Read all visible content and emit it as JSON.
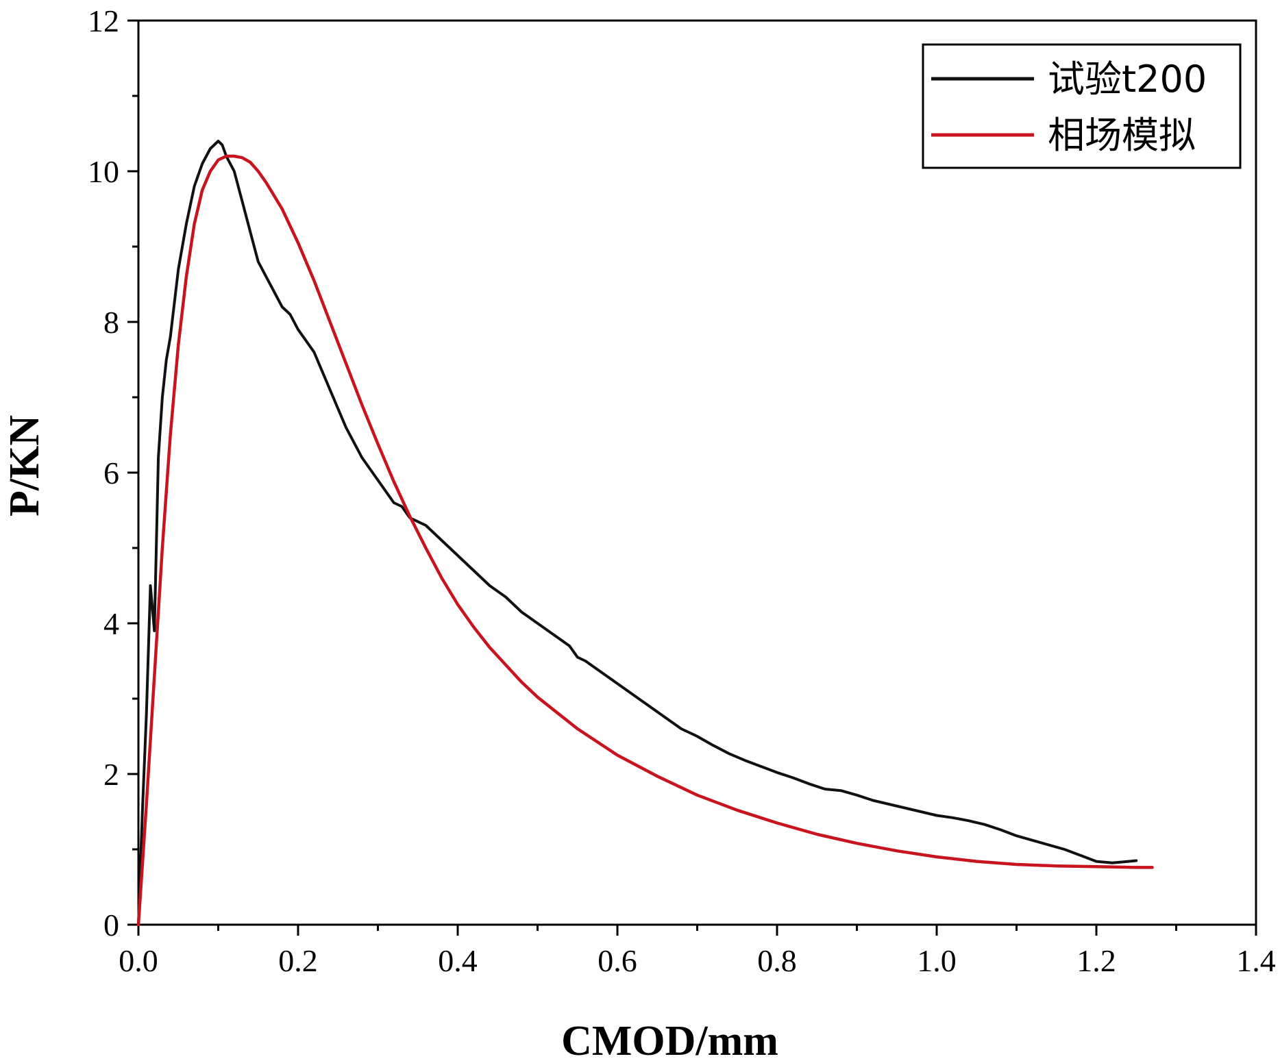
{
  "chart_data": {
    "type": "line",
    "title": "",
    "xlabel": "CMOD/mm",
    "ylabel": "P/KN",
    "xlim": [
      0.0,
      1.4
    ],
    "ylim": [
      0,
      12
    ],
    "x_ticks": [
      0.0,
      0.2,
      0.4,
      0.6,
      0.8,
      1.0,
      1.2,
      1.4
    ],
    "x_tick_labels": [
      "0.0",
      "0.2",
      "0.4",
      "0.6",
      "0.8",
      "1.0",
      "1.2",
      "1.4"
    ],
    "y_ticks": [
      0,
      2,
      4,
      6,
      8,
      10,
      12
    ],
    "y_tick_labels": [
      "0",
      "2",
      "4",
      "6",
      "8",
      "10",
      "12"
    ],
    "legend_position": "top-right",
    "series": [
      {
        "name": "试验t200",
        "color": "#111111",
        "x": [
          0.0,
          0.005,
          0.01,
          0.015,
          0.02,
          0.025,
          0.03,
          0.035,
          0.04,
          0.05,
          0.06,
          0.07,
          0.08,
          0.09,
          0.1,
          0.105,
          0.11,
          0.12,
          0.13,
          0.14,
          0.15,
          0.16,
          0.17,
          0.18,
          0.19,
          0.2,
          0.22,
          0.24,
          0.26,
          0.28,
          0.3,
          0.32,
          0.33,
          0.34,
          0.36,
          0.38,
          0.4,
          0.42,
          0.44,
          0.46,
          0.48,
          0.5,
          0.52,
          0.54,
          0.55,
          0.56,
          0.58,
          0.6,
          0.62,
          0.64,
          0.66,
          0.68,
          0.7,
          0.72,
          0.74,
          0.76,
          0.78,
          0.8,
          0.82,
          0.84,
          0.86,
          0.88,
          0.9,
          0.92,
          0.94,
          0.96,
          0.98,
          1.0,
          1.02,
          1.04,
          1.06,
          1.08,
          1.1,
          1.12,
          1.14,
          1.16,
          1.18,
          1.2,
          1.22,
          1.24,
          1.25
        ],
        "y": [
          0.0,
          1.5,
          2.8,
          4.5,
          3.9,
          6.2,
          7.0,
          7.5,
          7.8,
          8.7,
          9.3,
          9.8,
          10.1,
          10.3,
          10.4,
          10.35,
          10.2,
          10.0,
          9.6,
          9.2,
          8.8,
          8.6,
          8.4,
          8.2,
          8.1,
          7.9,
          7.6,
          7.1,
          6.6,
          6.2,
          5.9,
          5.6,
          5.55,
          5.4,
          5.3,
          5.1,
          4.9,
          4.7,
          4.5,
          4.35,
          4.15,
          4.0,
          3.85,
          3.7,
          3.55,
          3.5,
          3.35,
          3.2,
          3.05,
          2.9,
          2.75,
          2.6,
          2.5,
          2.38,
          2.27,
          2.18,
          2.1,
          2.02,
          1.95,
          1.87,
          1.8,
          1.78,
          1.72,
          1.65,
          1.6,
          1.55,
          1.5,
          1.45,
          1.42,
          1.38,
          1.33,
          1.26,
          1.18,
          1.12,
          1.06,
          1.0,
          0.92,
          0.84,
          0.82,
          0.84,
          0.85
        ]
      },
      {
        "name": "相场模拟",
        "color": "#c8141e",
        "x": [
          0.0,
          0.01,
          0.02,
          0.03,
          0.04,
          0.05,
          0.06,
          0.07,
          0.08,
          0.09,
          0.1,
          0.11,
          0.12,
          0.13,
          0.14,
          0.15,
          0.16,
          0.18,
          0.2,
          0.22,
          0.24,
          0.26,
          0.28,
          0.3,
          0.32,
          0.34,
          0.36,
          0.38,
          0.4,
          0.42,
          0.44,
          0.46,
          0.48,
          0.5,
          0.55,
          0.6,
          0.65,
          0.7,
          0.75,
          0.8,
          0.85,
          0.9,
          0.95,
          1.0,
          1.05,
          1.1,
          1.15,
          1.2,
          1.25,
          1.27
        ],
        "y": [
          0.0,
          1.6,
          3.3,
          5.0,
          6.5,
          7.7,
          8.6,
          9.3,
          9.75,
          10.0,
          10.15,
          10.2,
          10.2,
          10.18,
          10.12,
          10.0,
          9.85,
          9.5,
          9.05,
          8.55,
          8.0,
          7.45,
          6.9,
          6.38,
          5.88,
          5.42,
          5.0,
          4.6,
          4.25,
          3.95,
          3.68,
          3.45,
          3.22,
          3.02,
          2.6,
          2.25,
          1.97,
          1.72,
          1.52,
          1.35,
          1.2,
          1.08,
          0.98,
          0.9,
          0.84,
          0.8,
          0.78,
          0.77,
          0.76,
          0.76
        ]
      }
    ]
  }
}
